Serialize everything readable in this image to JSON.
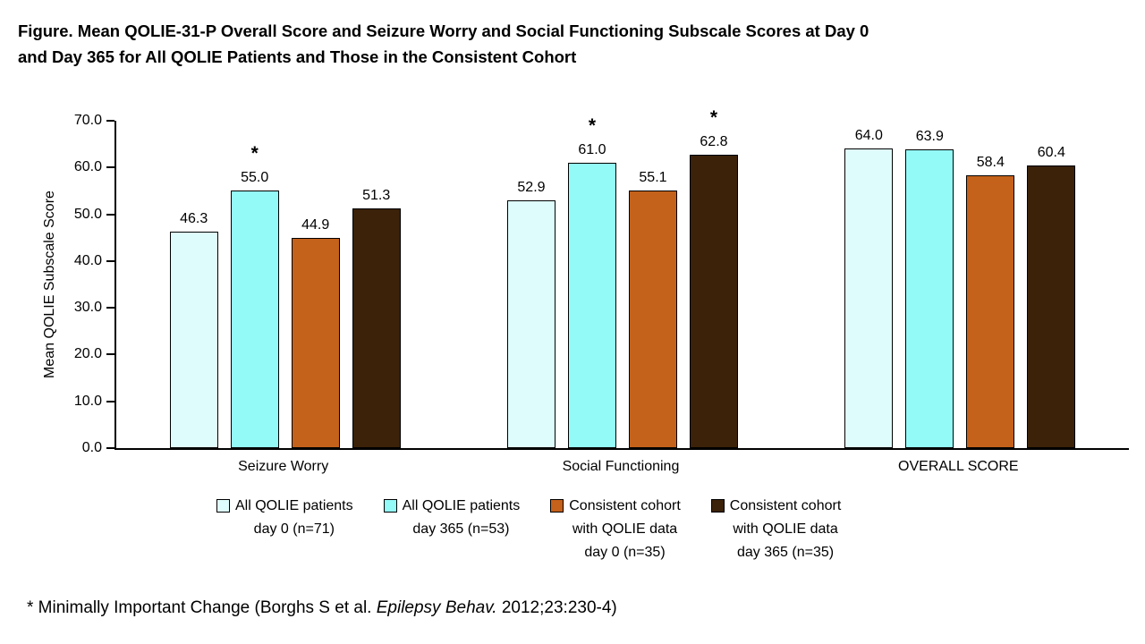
{
  "figure": {
    "title_lines": [
      "Figure. Mean QOLIE-31-P Overall Score and Seizure Worry and Social Functioning Subscale Scores at Day 0",
      "and Day 365 for All QOLIE Patients and Those in the Consistent Cohort"
    ]
  },
  "footnote": {
    "prefix": "* Minimally Important Change (Borghs S et al. ",
    "italic": "Epilepsy Behav.",
    "suffix": " 2012;23:230-4)"
  },
  "chart_data": {
    "type": "bar",
    "title": "Figure. Mean QOLIE-31-P Overall Score and Seizure Worry and Social Functioning Subscale Scores at Day 0 and Day 365 for All QOLIE Patients and Those in the Consistent Cohort",
    "xlabel": "",
    "ylabel": "Mean QOLIE Subscale Score",
    "ylim": [
      0,
      70
    ],
    "ytick_step": 10,
    "ytick_decimals": 1,
    "grid": false,
    "legend_position": "bottom",
    "star_symbol": "*",
    "star_meaning": "Minimally Important Change",
    "categories": [
      "Seizure Worry",
      "Social Functioning",
      "OVERALL SCORE"
    ],
    "series": [
      {
        "name": "All QOLIE patients day 0 (n=71)",
        "legend_lines": [
          "All QOLIE patients",
          "day 0 (n=71)"
        ],
        "color": "#DFFCFC",
        "values": [
          46.3,
          52.9,
          64.0
        ],
        "starred": [
          false,
          false,
          false
        ]
      },
      {
        "name": "All QOLIE patients day 365 (n=53)",
        "legend_lines": [
          "All QOLIE patients",
          "day 365 (n=53)"
        ],
        "color": "#94FAF7",
        "values": [
          55.0,
          61.0,
          63.9
        ],
        "starred": [
          true,
          true,
          false
        ]
      },
      {
        "name": "Consistent cohort with QOLIE data day 0 (n=35)",
        "legend_lines": [
          "Consistent cohort",
          "with QOLIE data",
          "day 0 (n=35)"
        ],
        "color": "#C4611B",
        "values": [
          44.9,
          55.1,
          58.4
        ],
        "starred": [
          false,
          false,
          false
        ]
      },
      {
        "name": "Consistent cohort with QOLIE data day 365 (n=35)",
        "legend_lines": [
          "Consistent cohort",
          "with QOLIE data",
          "day 365 (n=35)"
        ],
        "color": "#3B2208",
        "values": [
          51.3,
          62.8,
          60.4
        ],
        "starred": [
          false,
          true,
          false
        ]
      }
    ]
  }
}
